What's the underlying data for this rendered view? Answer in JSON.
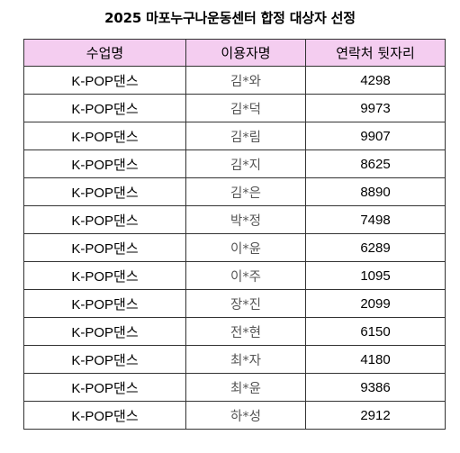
{
  "title": "2025 마포누구나운동센터 합정 대상자 선정",
  "table": {
    "headers": [
      "수업명",
      "이용자명",
      "연락처 뒷자리"
    ],
    "header_bg": "#f4cdf0",
    "rows": [
      [
        "K-POP댄스",
        "김*와",
        "4298"
      ],
      [
        "K-POP댄스",
        "김*덕",
        "9973"
      ],
      [
        "K-POP댄스",
        "김*림",
        "9907"
      ],
      [
        "K-POP댄스",
        "김*지",
        "8625"
      ],
      [
        "K-POP댄스",
        "김*은",
        "8890"
      ],
      [
        "K-POP댄스",
        "박*정",
        "7498"
      ],
      [
        "K-POP댄스",
        "이*윤",
        "6289"
      ],
      [
        "K-POP댄스",
        "이*주",
        "1095"
      ],
      [
        "K-POP댄스",
        "장*진",
        "2099"
      ],
      [
        "K-POP댄스",
        "전*현",
        "6150"
      ],
      [
        "K-POP댄스",
        "최*자",
        "4180"
      ],
      [
        "K-POP댄스",
        "최*윤",
        "9386"
      ],
      [
        "K-POP댄스",
        "하*성",
        "2912"
      ]
    ]
  }
}
